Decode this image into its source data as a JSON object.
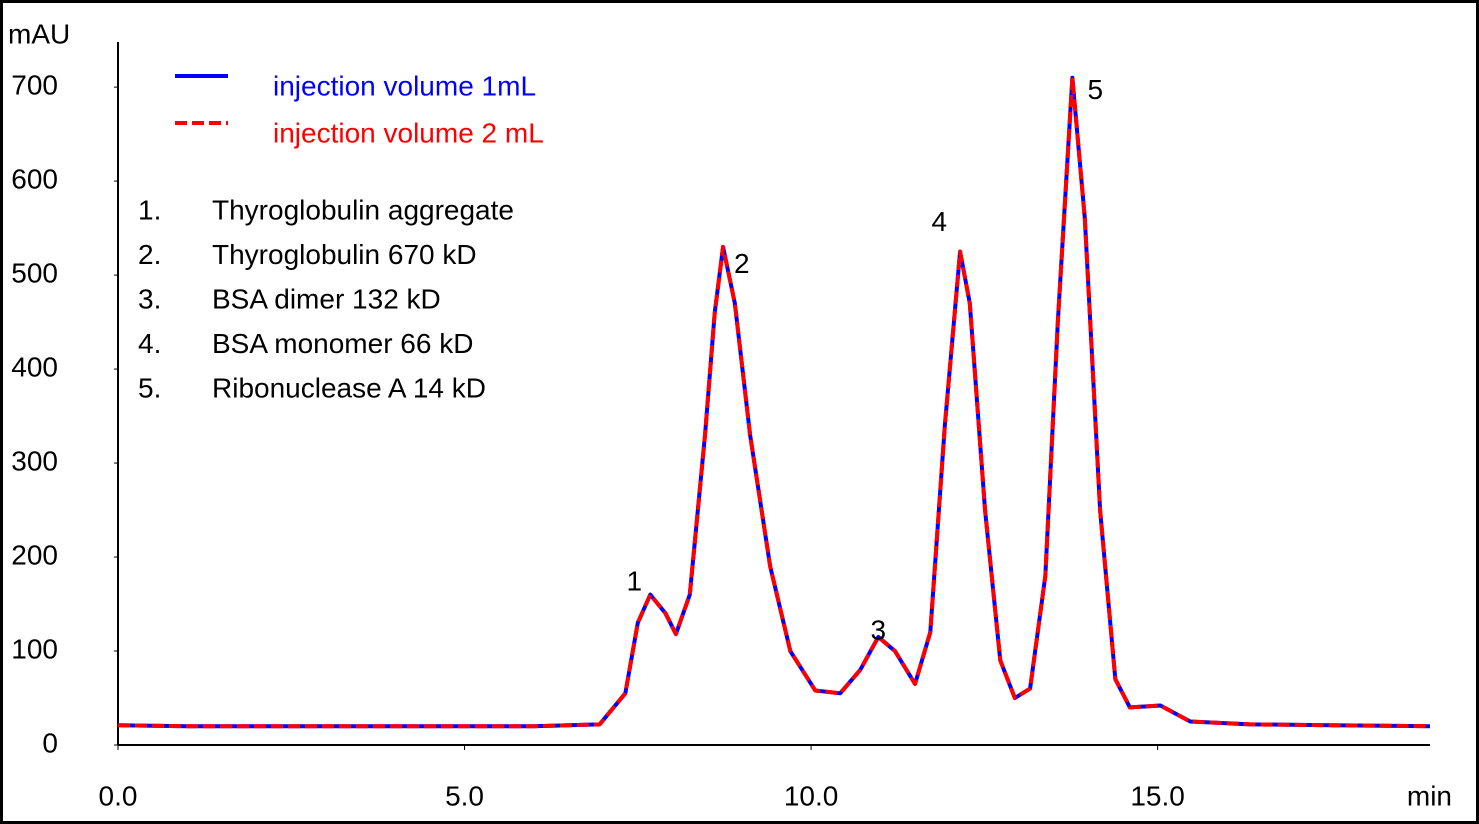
{
  "chart_data": {
    "type": "line",
    "y_axis_label": "mAU",
    "x_axis_label": "min",
    "xlim": [
      0,
      18.93
    ],
    "ylim": [
      0,
      748
    ],
    "xticks": [
      {
        "value": 0,
        "label": "0.0"
      },
      {
        "value": 5,
        "label": "5.0"
      },
      {
        "value": 10,
        "label": "10.0"
      },
      {
        "value": 15,
        "label": "15.0"
      }
    ],
    "yticks": [
      0,
      100,
      200,
      300,
      400,
      500,
      600,
      700
    ],
    "x": [
      0,
      1,
      2,
      3,
      4,
      5,
      6,
      6.95,
      7.32,
      7.5,
      7.68,
      7.9,
      8.05,
      8.25,
      8.47,
      8.61,
      8.73,
      8.9,
      9.12,
      9.41,
      9.7,
      10.06,
      10.42,
      10.71,
      10.97,
      11.21,
      11.5,
      11.72,
      11.93,
      12.15,
      12.29,
      12.51,
      12.73,
      12.94,
      13.16,
      13.38,
      13.56,
      13.77,
      13.95,
      14.17,
      14.39,
      14.6,
      15.04,
      15.47,
      16.33,
      17.5,
      18.93
    ],
    "series": [
      {
        "name": "injection volume 1mL",
        "color": "#0000ff",
        "dash": false,
        "values": [
          21,
          20,
          20,
          20,
          20,
          20,
          20,
          22,
          55,
          130,
          160,
          140,
          118,
          160,
          330,
          460,
          530,
          470,
          330,
          190,
          100,
          58,
          55,
          80,
          115,
          100,
          65,
          120,
          340,
          525,
          470,
          250,
          90,
          50,
          60,
          180,
          450,
          710,
          560,
          250,
          70,
          40,
          42,
          25,
          22,
          21,
          20
        ]
      },
      {
        "name": "injection volume 2 mL",
        "color": "#ff0000",
        "dash": true,
        "values": [
          21,
          20,
          20,
          20,
          20,
          20,
          20,
          22,
          55,
          130,
          160,
          140,
          118,
          160,
          330,
          460,
          530,
          470,
          330,
          190,
          100,
          58,
          55,
          80,
          115,
          100,
          65,
          120,
          340,
          525,
          470,
          250,
          90,
          50,
          60,
          180,
          450,
          710,
          560,
          250,
          70,
          40,
          42,
          25,
          22,
          21,
          20
        ]
      }
    ],
    "annotations": [
      {
        "text": "1",
        "x": 7.45,
        "y": 172
      },
      {
        "text": "2",
        "x": 9.0,
        "y": 510
      },
      {
        "text": "3",
        "x": 10.97,
        "y": 120
      },
      {
        "text": "4",
        "x": 11.85,
        "y": 555
      },
      {
        "text": "5",
        "x": 14.1,
        "y": 695
      }
    ],
    "components": [
      {
        "number": "1.",
        "name": "Thyroglobulin aggregate"
      },
      {
        "number": "2.",
        "name": "Thyroglobulin 670 kD"
      },
      {
        "number": "3.",
        "name": "BSA dimer 132 kD"
      },
      {
        "number": "4.",
        "name": "BSA monomer 66 kD"
      },
      {
        "number": "5.",
        "name": "Ribonuclease A 14 kD"
      }
    ]
  }
}
